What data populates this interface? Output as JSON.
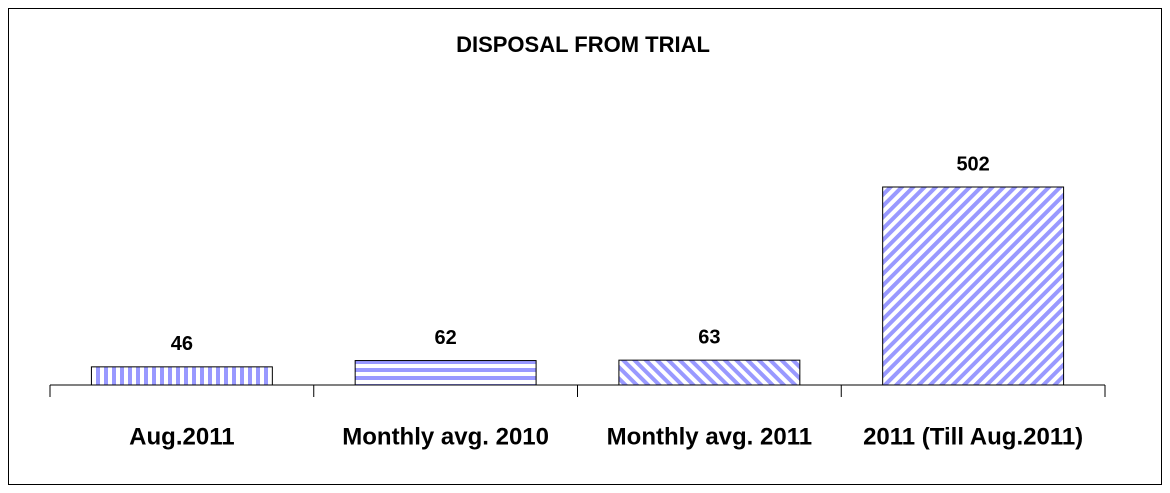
{
  "chart_data": {
    "type": "bar",
    "title": "DISPOSAL FROM TRIAL",
    "categories": [
      "Aug.2011",
      "Monthly avg. 2010",
      "Monthly avg. 2011",
      "2011 (Till Aug.2011)"
    ],
    "values": [
      46,
      62,
      63,
      502
    ],
    "color": "#9999ff",
    "patterns": [
      "vertical",
      "horizontal",
      "diagonal-down",
      "diagonal-up"
    ]
  }
}
